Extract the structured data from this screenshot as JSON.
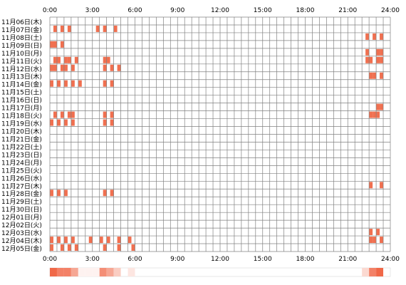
{
  "chart_data": {
    "type": "heatmap",
    "title": "",
    "xlabel": "",
    "ylabel": "",
    "x_range_hours": [
      0,
      24
    ],
    "x_tick_labels": [
      "0:00",
      "3:00",
      "6:00",
      "9:00",
      "12:00",
      "15:00",
      "18:00",
      "21:00",
      "24:00"
    ],
    "grid": true,
    "cell_minutes": 30,
    "colors": {
      "activity": "#f07050",
      "grid": "#808080",
      "density_min": "#ffffff",
      "density_max": "#f06848"
    },
    "rows": [
      {
        "label": "11月06日(木)",
        "slots": []
      },
      {
        "label": "11月07日(金)",
        "slots": [
          [
            0.5,
            1.0
          ],
          [
            1.5,
            2.0
          ],
          [
            2.5,
            3.0
          ],
          [
            6.5,
            7.0
          ],
          [
            7.5,
            8.0
          ],
          [
            9.0,
            9.5
          ]
        ]
      },
      {
        "label": "11月08日(土)",
        "slots": [
          [
            44.5,
            45.0
          ],
          [
            45.5,
            46.0
          ],
          [
            46.5,
            47.0
          ]
        ]
      },
      {
        "label": "11月09日(日)",
        "slots": [
          [
            0.0,
            0.5
          ],
          [
            0.5,
            1.0
          ],
          [
            1.5,
            2.0
          ]
        ]
      },
      {
        "label": "11月10日(月)",
        "slots": [
          [
            44.5,
            45.0
          ],
          [
            46.0,
            46.5
          ],
          [
            46.5,
            47.0
          ]
        ]
      },
      {
        "label": "11月11日(火)",
        "slots": [
          [
            0.5,
            1.0
          ],
          [
            1.0,
            1.5
          ],
          [
            2.0,
            2.5
          ],
          [
            2.5,
            3.0
          ],
          [
            3.5,
            4.0
          ],
          [
            7.5,
            8.0
          ],
          [
            8.0,
            8.5
          ],
          [
            44.5,
            45.0
          ],
          [
            45.0,
            45.5
          ],
          [
            46.0,
            46.5
          ],
          [
            46.5,
            47.0
          ]
        ]
      },
      {
        "label": "11月12日(水)",
        "slots": [
          [
            0.0,
            0.5
          ],
          [
            0.5,
            1.0
          ],
          [
            1.5,
            2.0
          ],
          [
            2.0,
            2.5
          ],
          [
            3.0,
            3.5
          ],
          [
            7.5,
            8.0
          ],
          [
            8.5,
            9.0
          ],
          [
            9.5,
            10.0
          ]
        ]
      },
      {
        "label": "11月13日(木)",
        "slots": [
          [
            45.0,
            45.5
          ],
          [
            45.5,
            46.0
          ],
          [
            46.5,
            47.0
          ]
        ]
      },
      {
        "label": "11月14日(金)",
        "slots": [
          [
            0.0,
            0.5
          ],
          [
            1.0,
            1.5
          ],
          [
            2.0,
            2.5
          ],
          [
            3.0,
            3.5
          ],
          [
            4.0,
            4.5
          ],
          [
            7.5,
            8.0
          ],
          [
            8.5,
            9.0
          ]
        ]
      },
      {
        "label": "11月15日(土)",
        "slots": []
      },
      {
        "label": "11月16日(日)",
        "slots": []
      },
      {
        "label": "11月17日(月)",
        "slots": [
          [
            46.0,
            46.5
          ],
          [
            46.5,
            47.0
          ]
        ]
      },
      {
        "label": "11月18日(火)",
        "slots": [
          [
            0.5,
            1.0
          ],
          [
            1.5,
            2.0
          ],
          [
            2.5,
            3.0
          ],
          [
            3.0,
            3.5
          ],
          [
            7.5,
            8.0
          ],
          [
            8.5,
            9.0
          ],
          [
            45.0,
            45.5
          ],
          [
            45.5,
            46.0
          ],
          [
            46.0,
            46.5
          ]
        ]
      },
      {
        "label": "11月19日(水)",
        "slots": [
          [
            0.0,
            0.5
          ],
          [
            1.0,
            1.5
          ],
          [
            2.0,
            2.5
          ],
          [
            3.0,
            3.5
          ],
          [
            7.5,
            8.0
          ],
          [
            8.5,
            9.0
          ]
        ]
      },
      {
        "label": "11月20日(木)",
        "slots": []
      },
      {
        "label": "11月21日(金)",
        "slots": []
      },
      {
        "label": "11月22日(土)",
        "slots": []
      },
      {
        "label": "11月23日(日)",
        "slots": []
      },
      {
        "label": "11月24日(月)",
        "slots": []
      },
      {
        "label": "11月25日(火)",
        "slots": []
      },
      {
        "label": "11月26日(水)",
        "slots": []
      },
      {
        "label": "11月27日(木)",
        "slots": [
          [
            45.0,
            45.5
          ],
          [
            46.5,
            47.0
          ]
        ]
      },
      {
        "label": "11月28日(金)",
        "slots": [
          [
            0.0,
            0.5
          ],
          [
            1.0,
            1.5
          ],
          [
            2.0,
            2.5
          ],
          [
            7.5,
            8.0
          ],
          [
            8.5,
            9.0
          ]
        ]
      },
      {
        "label": "11月29日(土)",
        "slots": []
      },
      {
        "label": "11月30日(日)",
        "slots": []
      },
      {
        "label": "12月01日(月)",
        "slots": []
      },
      {
        "label": "12月02日(火)",
        "slots": []
      },
      {
        "label": "12月03日(水)",
        "slots": [
          [
            45.0,
            45.5
          ],
          [
            46.0,
            46.5
          ]
        ]
      },
      {
        "label": "12月04日(木)",
        "slots": [
          [
            0.0,
            0.5
          ],
          [
            1.0,
            1.5
          ],
          [
            2.0,
            2.5
          ],
          [
            3.0,
            3.5
          ],
          [
            5.5,
            6.0
          ],
          [
            7.0,
            7.5
          ],
          [
            8.0,
            8.5
          ],
          [
            9.5,
            10.0
          ],
          [
            11.0,
            11.5
          ],
          [
            45.0,
            45.5
          ],
          [
            45.5,
            46.0
          ],
          [
            46.5,
            47.0
          ]
        ]
      },
      {
        "label": "12月05日(金)",
        "slots": [
          [
            0.0,
            0.5
          ],
          [
            1.5,
            2.0
          ],
          [
            2.5,
            3.0
          ],
          [
            3.5,
            4.0
          ],
          [
            7.5,
            8.0
          ],
          [
            9.5,
            10.0
          ],
          [
            11.5,
            12.0
          ]
        ]
      }
    ]
  }
}
